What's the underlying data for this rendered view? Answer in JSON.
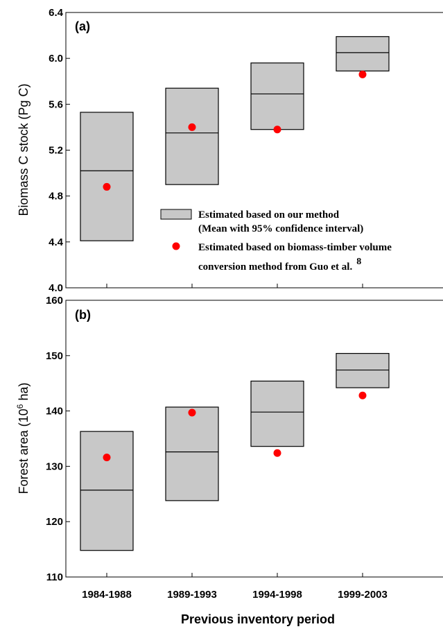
{
  "chart_data": [
    {
      "type": "box",
      "panel_label": "(a)",
      "ylabel": "Biomass C stock (Pg C)",
      "ylim": [
        4.0,
        6.4
      ],
      "yticks": [
        4.0,
        4.4,
        4.8,
        5.2,
        5.6,
        6.0,
        6.4
      ],
      "ytick_labels": [
        "4.0",
        "4.4",
        "4.8",
        "5.2",
        "5.6",
        "6.0",
        "6.4"
      ],
      "categories": [
        "1984-1988",
        "1989-1993",
        "1994-1998",
        "1999-2003"
      ],
      "series": [
        {
          "name": "Estimated based on our method (Mean with 95% confidence interval)",
          "low": [
            4.41,
            4.9,
            5.38,
            5.89
          ],
          "mean": [
            5.02,
            5.35,
            5.69,
            6.05
          ],
          "high": [
            5.53,
            5.74,
            5.96,
            6.19
          ]
        },
        {
          "name": "Estimated based on biomass-timber volume conversion method from Guo et al. 8",
          "values": [
            4.88,
            5.4,
            5.38,
            5.86
          ]
        }
      ],
      "legend": {
        "position": "lower-right",
        "entries": [
          {
            "line1": "Estimated based on our method",
            "line2": "(Mean with 95% confidence interval)"
          },
          {
            "line1": "Estimated based on biomass-timber volume",
            "line2": "conversion method from Guo et al.",
            "superscript": "8"
          }
        ]
      }
    },
    {
      "type": "box",
      "panel_label": "(b)",
      "ylabel_main": "Forest area (10",
      "ylabel_sup": "6",
      "ylabel_tail": " ha)",
      "ylim": [
        110,
        160
      ],
      "yticks": [
        110,
        120,
        130,
        140,
        150,
        160
      ],
      "ytick_labels": [
        "110",
        "120",
        "130",
        "140",
        "150",
        "160"
      ],
      "xlabel": "Previous inventory period",
      "categories": [
        "1984-1988",
        "1989-1993",
        "1994-1998",
        "1999-2003"
      ],
      "series": [
        {
          "name": "Estimated based on our method",
          "low": [
            114.8,
            123.8,
            133.6,
            144.2
          ],
          "mean": [
            125.7,
            132.6,
            139.8,
            147.4
          ],
          "high": [
            136.3,
            140.7,
            145.4,
            150.4
          ]
        },
        {
          "name": "Estimated based on biomass-timber volume conversion method",
          "values": [
            131.6,
            139.7,
            132.4,
            142.8
          ]
        }
      ]
    }
  ],
  "colors": {
    "box_fill": "#c8c8c8",
    "point": "#ff0000",
    "axis": "#000000"
  }
}
